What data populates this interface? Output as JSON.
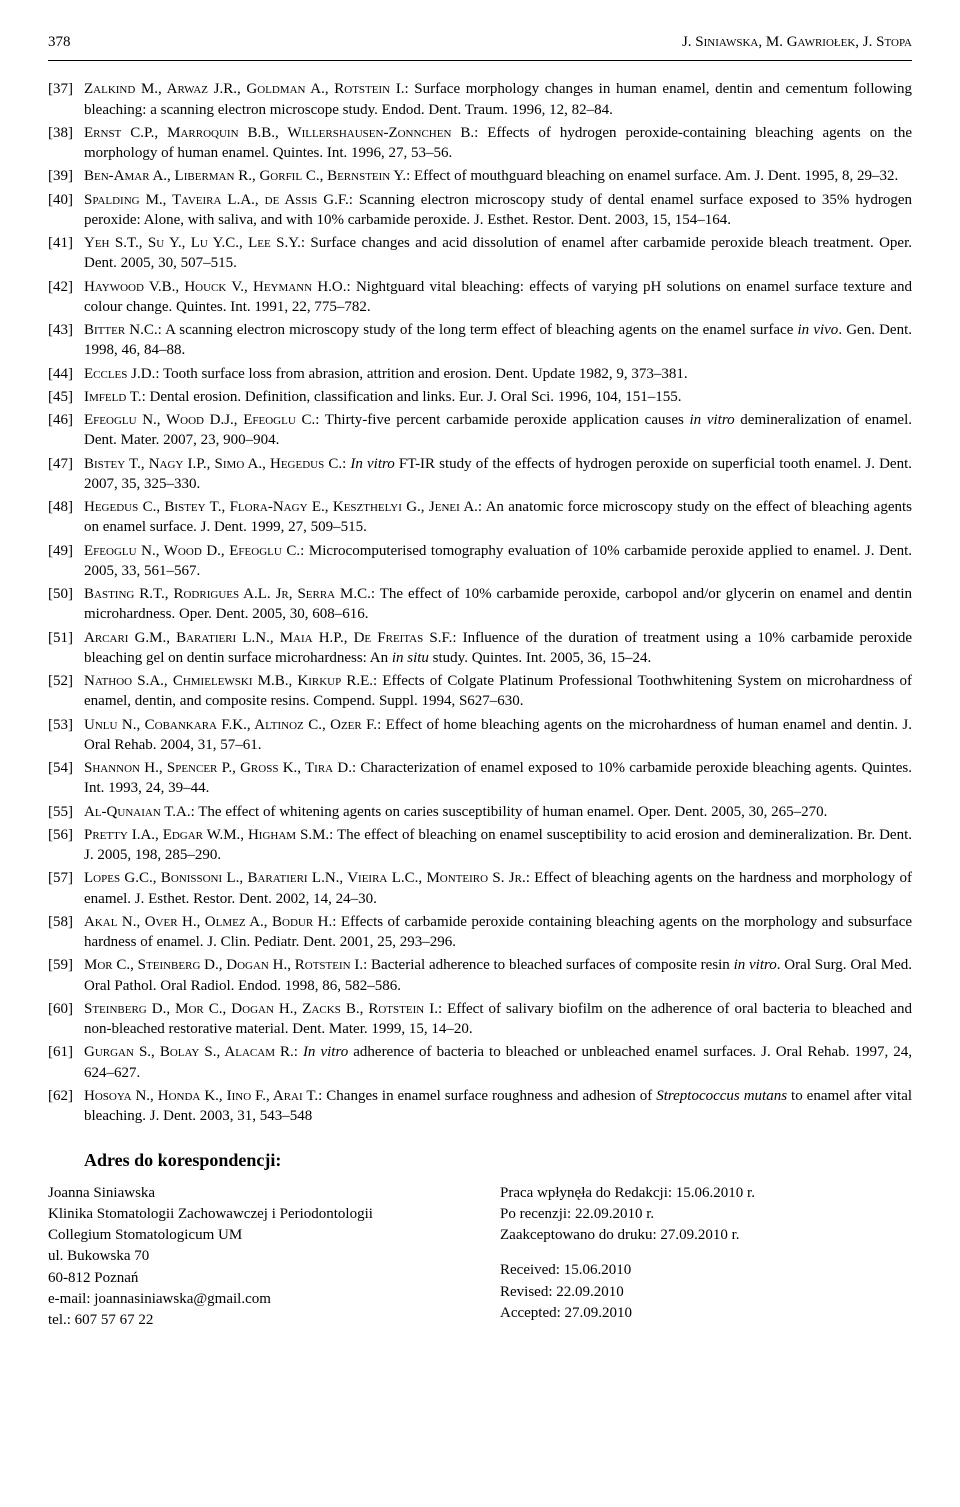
{
  "header": {
    "page_number": "378",
    "running_head": "J. Siniawska, M. Gawriołek, J. Stopa"
  },
  "references": [
    {
      "n": "[37]",
      "authors": "Zalkind M., Arwaz J.R., Goldman A., Rotstein I.",
      "rest": ": Surface morphology changes in human enamel, dentin and cementum following bleaching: a scanning electron microscope study. Endod. Dent. Traum. 1996, 12, 82–84."
    },
    {
      "n": "[38]",
      "authors": "Ernst C.P., Marroquin B.B., Willershausen-Zonnchen B.",
      "rest": ": Effects of hydrogen peroxide-containing bleaching agents on the morphology of human enamel. Quintes. Int. 1996, 27, 53–56."
    },
    {
      "n": "[39]",
      "authors": "Ben-Amar A., Liberman R., Gorfil C., Bernstein Y.",
      "rest": ": Effect of mouthguard bleaching on enamel surface. Am. J. Dent. 1995, 8, 29–32."
    },
    {
      "n": "[40]",
      "authors": "Spalding M., Taveira L.A., de Assis G.F.",
      "rest": ": Scanning electron microscopy study of dental enamel surface exposed to 35% hydrogen peroxide: Alone, with saliva, and with 10% carbamide peroxide. J. Esthet. Restor. Dent. 2003, 15, 154–164."
    },
    {
      "n": "[41]",
      "authors": "Yeh S.T., Su Y., Lu Y.C., Lee S.Y.",
      "rest": ": Surface changes and acid dissolution of enamel after carbamide peroxide bleach treatment. Oper. Dent. 2005, 30, 507–515."
    },
    {
      "n": "[42]",
      "authors": "Haywood V.B., Houck V., Heymann H.O.",
      "rest": ": Nightguard vital bleaching: effects of varying pH solutions on enamel surface texture and colour change. Quintes. Int. 1991, 22, 775–782."
    },
    {
      "n": "[43]",
      "authors": "Bitter N.C.",
      "rest": ": A scanning electron microscopy study of the long term effect of bleaching agents on the enamel surface <em>in vivo</em>. Gen. Dent. 1998, 46, 84–88."
    },
    {
      "n": "[44]",
      "authors": "Eccles J.D.",
      "rest": ": Tooth surface loss from abrasion, attrition and erosion. Dent. Update 1982, 9, 373–381."
    },
    {
      "n": "[45]",
      "authors": "Imfeld T.",
      "rest": ": Dental erosion. Definition, classification and links. Eur. J. Oral Sci. 1996, 104, 151–155."
    },
    {
      "n": "[46]",
      "authors": "Efeoglu N., Wood D.J., Efeoglu C.",
      "rest": ": Thirty-five percent carbamide peroxide application causes <em>in vitro</em> demineralization of enamel. Dent. Mater. 2007, 23, 900–904."
    },
    {
      "n": "[47]",
      "authors": "Bistey T., Nagy I.P., Simo A., Hegedus C.",
      "rest": ": <em>In vitro</em> FT-IR study of the effects of hydrogen peroxide on superficial tooth enamel. J. Dent. 2007, 35, 325–330."
    },
    {
      "n": "[48]",
      "authors": "Hegedus C., Bistey T., Flora-Nagy E., Keszthelyi G., Jenei A.",
      "rest": ": An anatomic force microscopy study on the effect of bleaching agents on enamel surface. J. Dent. 1999, 27, 509–515."
    },
    {
      "n": "[49]",
      "authors": "Efeoglu N., Wood D., Efeoglu C.",
      "rest": ": Microcomputerised tomography evaluation of 10% carbamide peroxide applied to enamel. J. Dent. 2005, 33, 561–567."
    },
    {
      "n": "[50]",
      "authors": "Basting R.T., Rodrigues A.L. Jr, Serra M.C.",
      "rest": ": The effect of 10% carbamide peroxide, carbopol and/or glycerin on enamel and dentin microhardness. Oper. Dent. 2005, 30, 608–616."
    },
    {
      "n": "[51]",
      "authors": "Arcari G.M., Baratieri L.N., Maia H.P., De Freitas S.F.",
      "rest": ": Influence of the duration of treatment using a 10% carbamide peroxide bleaching gel on dentin surface microhardness: An <em>in situ</em> study. Quintes. Int. 2005, 36, 15–24."
    },
    {
      "n": "[52]",
      "authors": "Nathoo S.A., Chmielewski M.B., Kirkup R.E.",
      "rest": ": Effects of Colgate Platinum Professional Toothwhitening System on microhardness of enamel, dentin, and composite resins. Compend. Suppl. 1994, S627–630."
    },
    {
      "n": "[53]",
      "authors": "Unlu N., Cobankara F.K., Altinoz C., Ozer F.",
      "rest": ": Effect of home bleaching agents on the microhardness of human enamel and dentin. J. Oral Rehab. 2004, 31, 57–61."
    },
    {
      "n": "[54]",
      "authors": "Shannon H., Spencer P., Gross K., Tira D.",
      "rest": ": Characterization of enamel exposed to 10% carbamide peroxide bleaching agents. Quintes. Int. 1993, 24, 39–44."
    },
    {
      "n": "[55]",
      "authors": "Al-Qunaian T.A.",
      "rest": ": The effect of whitening agents on caries susceptibility of human enamel. Oper. Dent. 2005, 30, 265–270."
    },
    {
      "n": "[56]",
      "authors": "Pretty I.A., Edgar W.M., Higham S.M.",
      "rest": ": The effect of bleaching on enamel susceptibility to acid erosion and demineralization. Br. Dent. J. 2005, 198, 285–290."
    },
    {
      "n": "[57]",
      "authors": "Lopes G.C., Bonissoni L., Baratieri L.N., Vieira L.C., Monteiro S. Jr.",
      "rest": ": Effect of bleaching agents on the hardness and morphology of enamel. J. Esthet. Restor. Dent. 2002, 14, 24–30."
    },
    {
      "n": "[58]",
      "authors": "Akal N., Over H., Olmez A., Bodur H.",
      "rest": ": Effects of carbamide peroxide containing bleaching agents on the morphology and subsurface hardness of enamel. J. Clin. Pediatr. Dent. 2001, 25, 293–296."
    },
    {
      "n": "[59]",
      "authors": "Mor C., Steinberg D., Dogan H., Rotstein I.",
      "rest": ": Bacterial adherence to bleached surfaces of composite resin <em>in vitro</em>. Oral Surg. Oral Med. Oral Pathol. Oral Radiol. Endod. 1998, 86, 582–586."
    },
    {
      "n": "[60]",
      "authors": "Steinberg D., Mor C., Dogan H., Zacks B., Rotstein I.",
      "rest": ": Effect of salivary biofilm on the adherence of oral bacteria to bleached and non-bleached restorative material. Dent. Mater. 1999, 15, 14–20."
    },
    {
      "n": "[61]",
      "authors": "Gurgan S., Bolay S., Alacam R.",
      "rest": ": <em>In vitro</em> adherence of bacteria to bleached or unbleached enamel surfaces. J. Oral Rehab. 1997, 24, 624–627."
    },
    {
      "n": "[62]",
      "authors": "Hosoya N., Honda K., Iino F., Arai T.",
      "rest": ": Changes in enamel surface roughness and adhesion of <em>Streptococcus mutans</em> to enamel after vital bleaching. J. Dent. 2003, 31, 543–548"
    }
  ],
  "correspondence": {
    "heading": "Adres do korespondencji:",
    "left": [
      "Joanna Siniawska",
      "Klinika Stomatologii Zachowawczej i Periodontologii",
      "Collegium Stomatologicum UM",
      "ul. Bukowska 70",
      "60-812 Poznań",
      "e-mail: joannasiniawska@gmail.com",
      "tel.: 607 57 67 22"
    ],
    "right_block1": [
      "Praca wpłynęła do Redakcji: 15.06.2010 r.",
      "Po recenzji: 22.09.2010 r.",
      "Zaakceptowano do druku: 27.09.2010 r."
    ],
    "right_block2": [
      "Received: 15.06.2010",
      "Revised: 22.09.2010",
      "Accepted: 27.09.2010"
    ]
  }
}
